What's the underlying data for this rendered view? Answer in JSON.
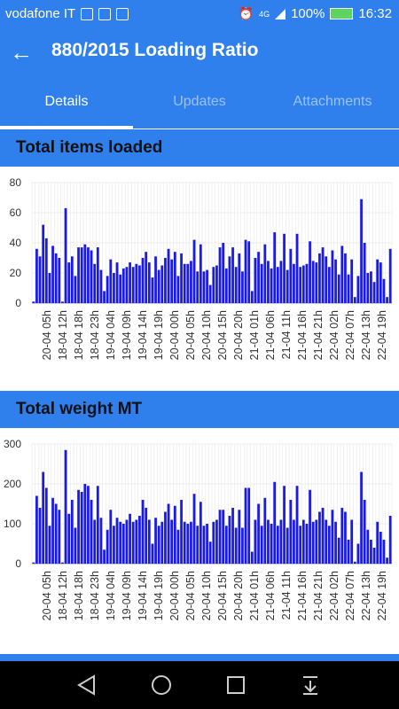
{
  "status": {
    "carrier": "vodafone IT",
    "network": "4G",
    "battery": "100%",
    "time": "16:32"
  },
  "appbar": {
    "title": "880/2015 Loading Ratio"
  },
  "tabs": [
    {
      "label": "Details",
      "active": true
    },
    {
      "label": "Updates",
      "active": false
    },
    {
      "label": "Attachments",
      "active": false
    }
  ],
  "colors": {
    "primary": "#2f80ed",
    "bar": "#1a1ae6",
    "grid": "#e8e8e8"
  },
  "chart_data": [
    {
      "type": "bar",
      "title": "Total items loaded",
      "ylim": [
        0,
        80
      ],
      "yticks": [
        0,
        20,
        40,
        60,
        80
      ],
      "xtick_labels": [
        "20-04 05h",
        "18-04 12h",
        "18-04 18h",
        "18-04 23h",
        "19-04 04h",
        "19-04 09h",
        "19-04 14h",
        "19-04 19h",
        "20-04 00h",
        "20-04 05h",
        "20-04 10h",
        "20-04 15h",
        "20-04 20h",
        "21-04 01h",
        "21-04 06h",
        "21-04 11h",
        "21-04 16h",
        "21-04 21h",
        "22-04 02h",
        "22-04 07h",
        "22-04 13h",
        "22-04 19h"
      ],
      "values": [
        1,
        36,
        31,
        52,
        43,
        20,
        38,
        33,
        30,
        1,
        63,
        27,
        31,
        18,
        37,
        37,
        39,
        37,
        35,
        26,
        37,
        22,
        8,
        18,
        29,
        20,
        27,
        19,
        23,
        24,
        27,
        24,
        26,
        25,
        30,
        34,
        27,
        17,
        31,
        22,
        25,
        30,
        36,
        29,
        34,
        18,
        33,
        26,
        26,
        28,
        42,
        21,
        39,
        21,
        22,
        12,
        24,
        25,
        37,
        40,
        23,
        31,
        37,
        24,
        33,
        21,
        42,
        41,
        8,
        30,
        34,
        26,
        39,
        28,
        23,
        47,
        24,
        28,
        46,
        22,
        36,
        26,
        46,
        24,
        25,
        26,
        41,
        28,
        27,
        33,
        37,
        31,
        24,
        35,
        29,
        19,
        38,
        33,
        19,
        29,
        4,
        18,
        69,
        40,
        20,
        21,
        14,
        29,
        27,
        16,
        4,
        36
      ]
    },
    {
      "type": "bar",
      "title": "Total weight MT",
      "ylim": [
        0,
        300
      ],
      "yticks": [
        0,
        100,
        200,
        300
      ],
      "xtick_labels": [
        "20-04 05h",
        "18-04 12h",
        "18-04 18h",
        "18-04 23h",
        "19-04 04h",
        "19-04 09h",
        "19-04 14h",
        "19-04 19h",
        "20-04 00h",
        "20-04 05h",
        "20-04 10h",
        "20-04 15h",
        "20-04 20h",
        "21-04 01h",
        "21-04 06h",
        "21-04 11h",
        "21-04 16h",
        "21-04 21h",
        "22-04 02h",
        "22-04 07h",
        "22-04 13h",
        "22-04 19h"
      ],
      "values": [
        3,
        170,
        140,
        230,
        190,
        95,
        165,
        150,
        135,
        3,
        285,
        125,
        160,
        90,
        185,
        180,
        200,
        195,
        160,
        110,
        195,
        115,
        35,
        85,
        135,
        95,
        115,
        105,
        100,
        110,
        125,
        105,
        110,
        120,
        160,
        140,
        110,
        50,
        115,
        95,
        105,
        130,
        150,
        110,
        145,
        85,
        160,
        105,
        100,
        105,
        175,
        95,
        155,
        95,
        100,
        55,
        105,
        110,
        135,
        135,
        95,
        120,
        140,
        90,
        135,
        90,
        190,
        190,
        30,
        110,
        150,
        95,
        165,
        110,
        100,
        205,
        95,
        110,
        195,
        90,
        160,
        110,
        195,
        95,
        110,
        100,
        185,
        105,
        110,
        130,
        140,
        110,
        95,
        135,
        105,
        65,
        140,
        130,
        60,
        110,
        5,
        50,
        230,
        160,
        85,
        60,
        40,
        105,
        80,
        60,
        15,
        120
      ]
    }
  ],
  "nav": {
    "icons": [
      "back-triangle-icon",
      "home-circle-icon",
      "recents-square-icon",
      "notification-pull-icon"
    ]
  }
}
